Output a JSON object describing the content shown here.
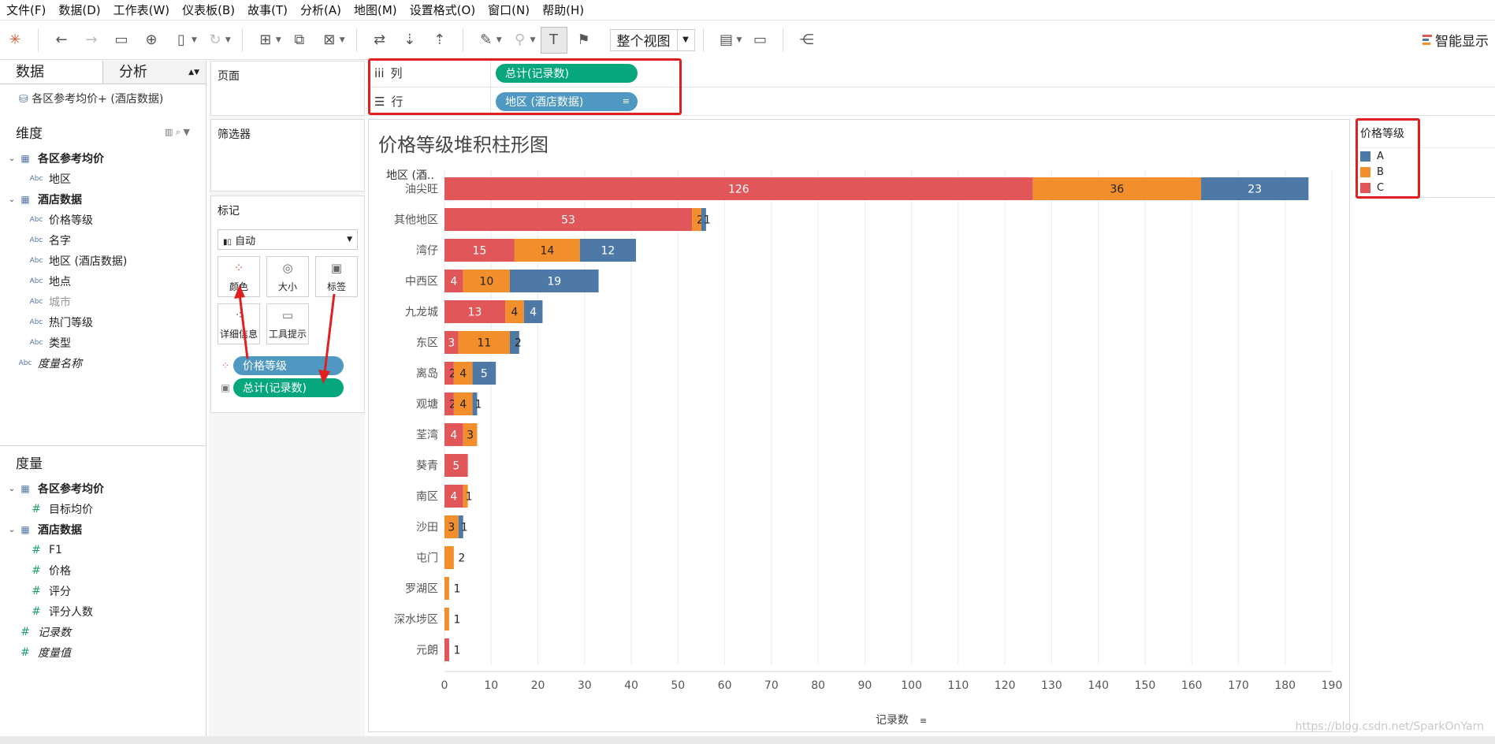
{
  "menu": [
    "文件(F)",
    "数据(D)",
    "工作表(W)",
    "仪表板(B)",
    "故事(T)",
    "分析(A)",
    "地图(M)",
    "设置格式(O)",
    "窗口(N)",
    "帮助(H)"
  ],
  "toolbar": {
    "view_select": "整个视图",
    "smart_display": "智能显示"
  },
  "left": {
    "tabs": [
      "数据",
      "分析"
    ],
    "datasource": "各区参考均价+ (酒店数据)",
    "dimensions_title": "维度",
    "dimensions": [
      {
        "label": "各区参考均价",
        "type": "group"
      },
      {
        "label": "地区",
        "type": "abc"
      },
      {
        "label": "酒店数据",
        "type": "group"
      },
      {
        "label": "价格等级",
        "type": "abc"
      },
      {
        "label": "名字",
        "type": "abc"
      },
      {
        "label": "地区 (酒店数据)",
        "type": "abc"
      },
      {
        "label": "地点",
        "type": "abc"
      },
      {
        "label": "城市",
        "type": "abc-gray"
      },
      {
        "label": "热门等级",
        "type": "abc"
      },
      {
        "label": "类型",
        "type": "abc"
      },
      {
        "label": "度量名称",
        "type": "abc-italic"
      }
    ],
    "measures_title": "度量",
    "measures": [
      {
        "label": "各区参考均价",
        "type": "group"
      },
      {
        "label": "目标均价",
        "type": "hash"
      },
      {
        "label": "酒店数据",
        "type": "group"
      },
      {
        "label": "F1",
        "type": "hash"
      },
      {
        "label": "价格",
        "type": "hash"
      },
      {
        "label": "评分",
        "type": "hash"
      },
      {
        "label": "评分人数",
        "type": "hash"
      },
      {
        "label": "记录数",
        "type": "hash-italic"
      },
      {
        "label": "度量值",
        "type": "hash-italic"
      }
    ]
  },
  "mid": {
    "pages": "页面",
    "filters": "筛选器",
    "marks": "标记",
    "marks_type": "自动",
    "mark_buttons": [
      "颜色",
      "大小",
      "标签",
      "详细信息",
      "工具提示"
    ],
    "pill_color": "价格等级",
    "pill_label": "总计(记录数)"
  },
  "shelves": {
    "columns_label": "列",
    "columns_pill": "总计(记录数)",
    "rows_label": "行",
    "rows_pill": "地区 (酒店数据)"
  },
  "legend": {
    "title": "价格等级",
    "items": [
      {
        "label": "A",
        "color": "#4e79a7"
      },
      {
        "label": "B",
        "color": "#f28e2b"
      },
      {
        "label": "C",
        "color": "#e15759"
      }
    ]
  },
  "chart_data": {
    "type": "bar",
    "orientation": "horizontal",
    "stacked": true,
    "title": "价格等级堆积柱形图",
    "row_header": "地区 (酒..",
    "xlabel": "记录数",
    "xlim": [
      0,
      190
    ],
    "xticks": [
      0,
      10,
      20,
      30,
      40,
      50,
      60,
      70,
      80,
      90,
      100,
      110,
      120,
      130,
      140,
      150,
      160,
      170,
      180,
      190
    ],
    "categories": [
      "油尖旺",
      "其他地区",
      "湾仔",
      "中西区",
      "九龙城",
      "东区",
      "离岛",
      "观塘",
      "荃湾",
      "葵青",
      "南区",
      "沙田",
      "屯门",
      "罗湖区",
      "深水埗区",
      "元朗"
    ],
    "series": [
      {
        "name": "C",
        "color": "#e15759",
        "values": [
          126,
          53,
          15,
          4,
          13,
          3,
          2,
          2,
          4,
          5,
          4,
          0,
          0,
          0,
          0,
          1
        ]
      },
      {
        "name": "B",
        "color": "#f28e2b",
        "values": [
          36,
          2,
          14,
          10,
          4,
          11,
          4,
          4,
          3,
          0,
          1,
          3,
          2,
          1,
          1,
          0
        ]
      },
      {
        "name": "A",
        "color": "#4e79a7",
        "values": [
          23,
          1,
          12,
          19,
          4,
          2,
          5,
          1,
          0,
          0,
          0,
          1,
          0,
          0,
          0,
          0
        ]
      }
    ],
    "label_mode": "per segment; categories with one segment show the total",
    "grid": true,
    "legend_position": "right"
  },
  "watermark": "https://blog.csdn.net/SparkOnYarn"
}
